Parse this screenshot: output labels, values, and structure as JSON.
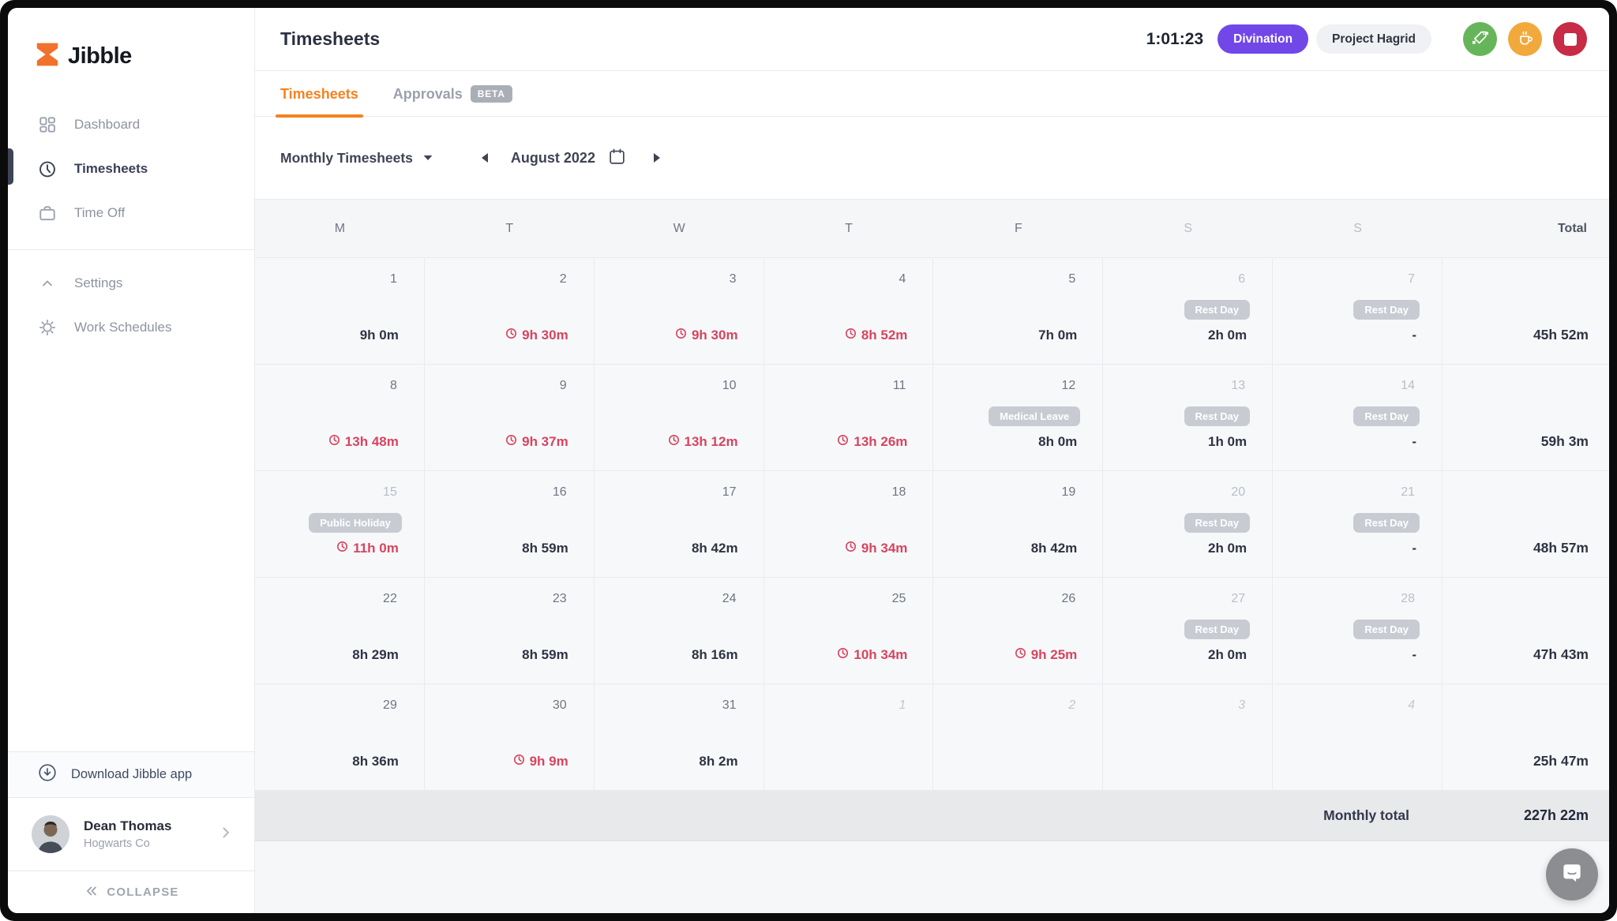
{
  "sidebar": {
    "logo_text": "Jibble",
    "nav": [
      {
        "label": "Dashboard",
        "icon": "dashboard-icon",
        "active": false
      },
      {
        "label": "Timesheets",
        "icon": "clock-icon",
        "active": true
      },
      {
        "label": "Time Off",
        "icon": "briefcase-icon",
        "active": false
      }
    ],
    "secondary": [
      {
        "label": "Settings",
        "icon": "chevron-up-icon"
      },
      {
        "label": "Work Schedules",
        "icon": "schedule-sun-icon"
      }
    ],
    "download_label": "Download Jibble app",
    "user": {
      "name": "Dean Thomas",
      "company": "Hogwarts Co"
    },
    "collapse_label": "COLLAPSE"
  },
  "header": {
    "title": "Timesheets",
    "timer": "1:01:23",
    "activity_badge": "Divination",
    "project_badge": "Project Hagrid",
    "action_buttons": [
      {
        "name": "change-activity-button",
        "icon": "tag-arrows-icon",
        "color": "#67b55b"
      },
      {
        "name": "take-break-button",
        "icon": "coffee-cup-icon",
        "color": "#f2a93b"
      },
      {
        "name": "stop-timer-button",
        "icon": "stop-square-icon",
        "color": "#c72b45"
      }
    ]
  },
  "tabs": {
    "timesheets": "Timesheets",
    "approvals": "Approvals",
    "beta": "BETA"
  },
  "controls": {
    "view": "Monthly Timesheets",
    "month": "August 2022"
  },
  "calendar": {
    "day_headers": [
      {
        "label": "M"
      },
      {
        "label": "T"
      },
      {
        "label": "W"
      },
      {
        "label": "T"
      },
      {
        "label": "F"
      },
      {
        "label": "S",
        "muted": true
      },
      {
        "label": "S",
        "muted": true
      }
    ],
    "total_header": "Total",
    "weeks": [
      {
        "total": "45h 52m",
        "days": [
          {
            "num": "1",
            "value": "9h 0m"
          },
          {
            "num": "2",
            "value": "9h 30m",
            "overtime": true
          },
          {
            "num": "3",
            "value": "9h 30m",
            "overtime": true
          },
          {
            "num": "4",
            "value": "8h 52m",
            "overtime": true
          },
          {
            "num": "5",
            "value": "7h 0m"
          },
          {
            "num": "6",
            "badge": "Rest Day",
            "value": "2h 0m",
            "muted_num": true
          },
          {
            "num": "7",
            "badge": "Rest Day",
            "value": "-",
            "muted_num": true
          }
        ]
      },
      {
        "total": "59h 3m",
        "days": [
          {
            "num": "8",
            "value": "13h 48m",
            "overtime": true
          },
          {
            "num": "9",
            "value": "9h 37m",
            "overtime": true
          },
          {
            "num": "10",
            "value": "13h 12m",
            "overtime": true
          },
          {
            "num": "11",
            "value": "13h 26m",
            "overtime": true
          },
          {
            "num": "12",
            "badge": "Medical Leave",
            "value": "8h 0m"
          },
          {
            "num": "13",
            "badge": "Rest Day",
            "value": "1h 0m",
            "muted_num": true
          },
          {
            "num": "14",
            "badge": "Rest Day",
            "value": "-",
            "muted_num": true
          }
        ]
      },
      {
        "total": "48h 57m",
        "days": [
          {
            "num": "15",
            "badge": "Public Holiday",
            "value": "11h 0m",
            "overtime": true,
            "muted_num": true
          },
          {
            "num": "16",
            "value": "8h 59m"
          },
          {
            "num": "17",
            "value": "8h 42m"
          },
          {
            "num": "18",
            "value": "9h 34m",
            "overtime": true
          },
          {
            "num": "19",
            "value": "8h 42m"
          },
          {
            "num": "20",
            "badge": "Rest Day",
            "value": "2h 0m",
            "muted_num": true
          },
          {
            "num": "21",
            "badge": "Rest Day",
            "value": "-",
            "muted_num": true
          }
        ]
      },
      {
        "total": "47h 43m",
        "days": [
          {
            "num": "22",
            "value": "8h 29m"
          },
          {
            "num": "23",
            "value": "8h 59m"
          },
          {
            "num": "24",
            "value": "8h 16m"
          },
          {
            "num": "25",
            "value": "10h 34m",
            "overtime": true
          },
          {
            "num": "26",
            "value": "9h 25m",
            "overtime": true
          },
          {
            "num": "27",
            "badge": "Rest Day",
            "value": "2h 0m",
            "muted_num": true
          },
          {
            "num": "28",
            "badge": "Rest Day",
            "value": "-",
            "muted_num": true
          }
        ]
      },
      {
        "total": "25h 47m",
        "days": [
          {
            "num": "29",
            "value": "8h 36m"
          },
          {
            "num": "30",
            "value": "9h 9m",
            "overtime": true
          },
          {
            "num": "31",
            "value": "8h 2m"
          },
          {
            "num": "1",
            "next_month": true
          },
          {
            "num": "2",
            "next_month": true
          },
          {
            "num": "3",
            "next_month": true
          },
          {
            "num": "4",
            "next_month": true
          }
        ]
      }
    ],
    "monthly_total_label": "Monthly total",
    "monthly_total_value": "227h 22m"
  },
  "colors": {
    "accent_orange": "#f58220",
    "overtime_red": "#d6455f",
    "activity_purple": "#7147e8",
    "resume_green": "#67b55b",
    "break_amber": "#f2a93b",
    "stop_red": "#c72b45",
    "badge_gray": "#c8ccd2"
  }
}
